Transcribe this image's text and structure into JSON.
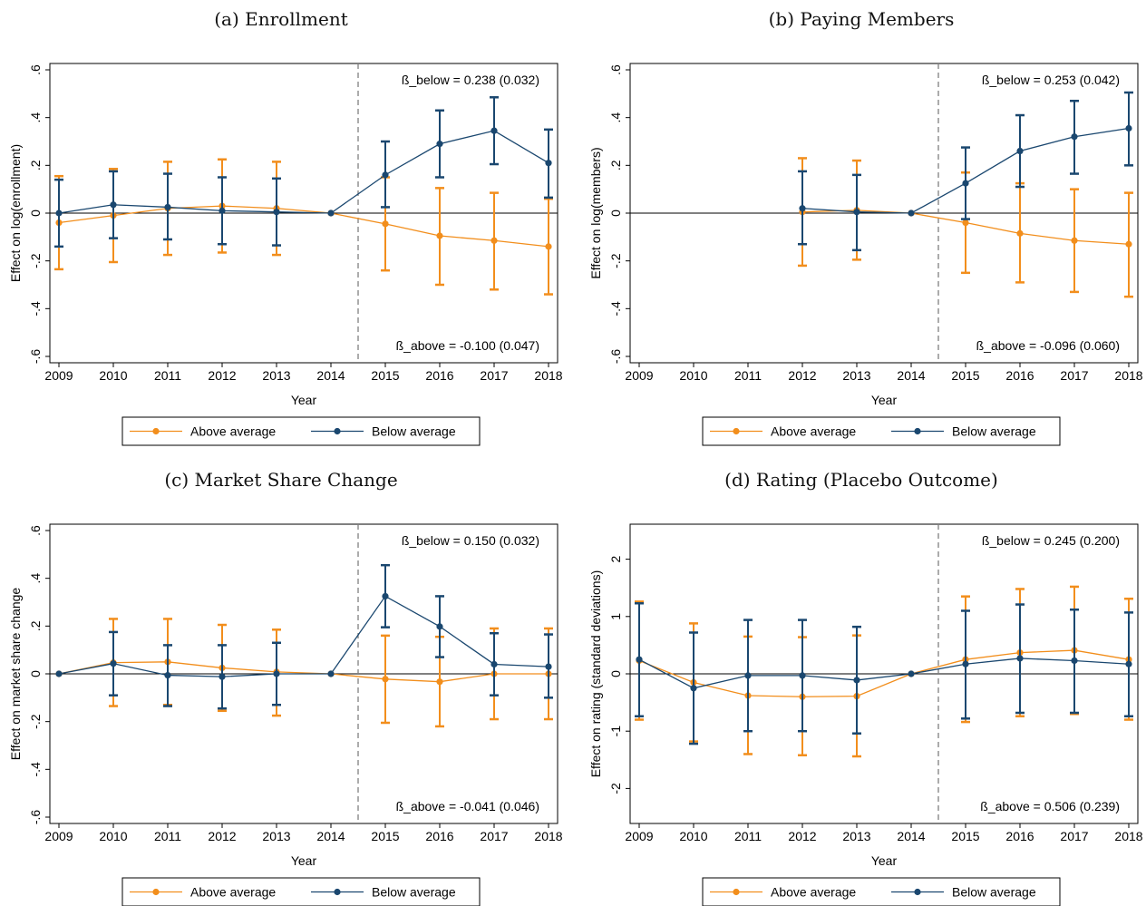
{
  "colors": {
    "above": "#f28e1c",
    "below": "#1a476f",
    "frame": "#000000",
    "zero_line": "#000000",
    "dashed": "#7f7f7f"
  },
  "chart_data": [
    {
      "type": "line",
      "title": "(a) Enrollment",
      "xlabel": "Year",
      "ylabel": "Effect on log(enrollment)",
      "x": [
        2009,
        2010,
        2011,
        2012,
        2013,
        2014,
        2015,
        2016,
        2017,
        2018
      ],
      "ylim": [
        -0.6,
        0.6
      ],
      "yticks": [
        ".6",
        ".4",
        ".2",
        "0",
        "-.2",
        "-.4",
        "-.6"
      ],
      "ytick_values": [
        0.6,
        0.4,
        0.2,
        0,
        -0.2,
        -0.4,
        -0.6
      ],
      "vline_x": 2014.5,
      "legend": [
        "Above average",
        "Below average"
      ],
      "note_below": "ß_below = 0.238 (0.032)",
      "note_above": "ß_above = -0.100 (0.047)",
      "series": [
        {
          "name": "Above average",
          "x": [
            2009,
            2010,
            2011,
            2012,
            2013,
            2014,
            2015,
            2016,
            2017,
            2018
          ],
          "values": [
            -0.04,
            -0.01,
            0.02,
            0.03,
            0.02,
            0,
            -0.045,
            -0.095,
            -0.115,
            -0.14
          ],
          "ci_low": [
            -0.235,
            -0.205,
            -0.175,
            -0.165,
            -0.175,
            0,
            -0.24,
            -0.3,
            -0.32,
            -0.34
          ],
          "ci_high": [
            0.155,
            0.185,
            0.215,
            0.225,
            0.215,
            0,
            0.15,
            0.105,
            0.085,
            0.06
          ]
        },
        {
          "name": "Below average",
          "x": [
            2009,
            2010,
            2011,
            2012,
            2013,
            2014,
            2015,
            2016,
            2017,
            2018
          ],
          "values": [
            0,
            0.035,
            0.025,
            0.01,
            0.005,
            0,
            0.16,
            0.29,
            0.345,
            0.21
          ],
          "ci_low": [
            -0.14,
            -0.105,
            -0.11,
            -0.13,
            -0.135,
            0,
            0.025,
            0.15,
            0.205,
            0.065
          ],
          "ci_high": [
            0.14,
            0.175,
            0.165,
            0.15,
            0.145,
            0,
            0.3,
            0.43,
            0.485,
            0.35
          ]
        }
      ]
    },
    {
      "type": "line",
      "title": "(b) Paying Members",
      "xlabel": "Year",
      "ylabel": "Effect on log(members)",
      "x": [
        2009,
        2010,
        2011,
        2012,
        2013,
        2014,
        2015,
        2016,
        2017,
        2018
      ],
      "ylim": [
        -0.6,
        0.6
      ],
      "yticks": [
        ".6",
        ".4",
        ".2",
        "0",
        "-.2",
        "-.4",
        "-.6"
      ],
      "ytick_values": [
        0.6,
        0.4,
        0.2,
        0,
        -0.2,
        -0.4,
        -0.6
      ],
      "vline_x": 2014.5,
      "legend": [
        "Above average",
        "Below average"
      ],
      "note_below": "ß_below = 0.253 (0.042)",
      "note_above": "ß_above = -0.096 (0.060)",
      "series": [
        {
          "name": "Above average",
          "x": [
            2012,
            2013,
            2014,
            2015,
            2016,
            2017,
            2018
          ],
          "values": [
            0.005,
            0.012,
            0,
            -0.04,
            -0.085,
            -0.115,
            -0.13
          ],
          "ci_low": [
            -0.22,
            -0.195,
            0,
            -0.25,
            -0.29,
            -0.33,
            -0.35
          ],
          "ci_high": [
            0.23,
            0.22,
            0,
            0.17,
            0.125,
            0.1,
            0.085
          ]
        },
        {
          "name": "Below average",
          "x": [
            2012,
            2013,
            2014,
            2015,
            2016,
            2017,
            2018
          ],
          "values": [
            0.02,
            0.005,
            0,
            0.125,
            0.26,
            0.32,
            0.355
          ],
          "ci_low": [
            -0.13,
            -0.155,
            0,
            -0.025,
            0.11,
            0.165,
            0.2
          ],
          "ci_high": [
            0.175,
            0.16,
            0,
            0.275,
            0.41,
            0.47,
            0.505
          ]
        }
      ]
    },
    {
      "type": "line",
      "title": "(c) Market Share Change",
      "xlabel": "Year",
      "ylabel": "Effect on market share change",
      "x": [
        2009,
        2010,
        2011,
        2012,
        2013,
        2014,
        2015,
        2016,
        2017,
        2018
      ],
      "ylim": [
        -0.6,
        0.6
      ],
      "yticks": [
        ".6",
        ".4",
        ".2",
        "0",
        "-.2",
        "-.4",
        "-.6"
      ],
      "ytick_values": [
        0.6,
        0.4,
        0.2,
        0,
        -0.2,
        -0.4,
        -0.6
      ],
      "vline_x": 2014.5,
      "legend": [
        "Above average",
        "Below average"
      ],
      "note_below": "ß_below = 0.150 (0.032)",
      "note_above": "ß_above = -0.041 (0.046)",
      "series": [
        {
          "name": "Above average",
          "x": [
            2009,
            2010,
            2011,
            2012,
            2013,
            2014,
            2015,
            2016,
            2017,
            2018
          ],
          "values": [
            0,
            0.047,
            0.05,
            0.025,
            0.008,
            0,
            -0.022,
            -0.033,
            0,
            0
          ],
          "ci_low": [
            0,
            -0.135,
            -0.13,
            -0.155,
            -0.175,
            0,
            -0.205,
            -0.22,
            -0.19,
            -0.19
          ],
          "ci_high": [
            0,
            0.23,
            0.23,
            0.205,
            0.185,
            0,
            0.16,
            0.155,
            0.19,
            0.19
          ]
        },
        {
          "name": "Below average",
          "x": [
            2009,
            2010,
            2011,
            2012,
            2013,
            2014,
            2015,
            2016,
            2017,
            2018
          ],
          "values": [
            0,
            0.043,
            -0.006,
            -0.012,
            0,
            0,
            0.325,
            0.198,
            0.04,
            0.03
          ],
          "ci_low": [
            0,
            -0.09,
            -0.135,
            -0.145,
            -0.13,
            0,
            0.195,
            0.07,
            -0.09,
            -0.1
          ],
          "ci_high": [
            0,
            0.175,
            0.12,
            0.12,
            0.13,
            0,
            0.455,
            0.325,
            0.17,
            0.165
          ]
        }
      ]
    },
    {
      "type": "line",
      "title": "(d) Rating (Placebo Outcome)",
      "xlabel": "Year",
      "ylabel": "Effect on rating (standard deviations)",
      "x": [
        2009,
        2010,
        2011,
        2012,
        2013,
        2014,
        2015,
        2016,
        2017,
        2018
      ],
      "ylim": [
        -2.5,
        2.5
      ],
      "yticks": [
        "2",
        "1",
        "0",
        "-1",
        "-2"
      ],
      "ytick_values": [
        2,
        1,
        0,
        -1,
        -2
      ],
      "vline_x": 2014.5,
      "legend": [
        "Above average",
        "Below average"
      ],
      "note_below": "ß_below = 0.245 (0.200)",
      "note_above": "ß_above = 0.506 (0.239)",
      "series": [
        {
          "name": "Above average",
          "x": [
            2009,
            2010,
            2011,
            2012,
            2013,
            2014,
            2015,
            2016,
            2017,
            2018
          ],
          "values": [
            0.23,
            -0.15,
            -0.38,
            -0.4,
            -0.39,
            0,
            0.25,
            0.37,
            0.41,
            0.25
          ],
          "ci_low": [
            -0.8,
            -1.18,
            -1.4,
            -1.42,
            -1.44,
            0,
            -0.84,
            -0.74,
            -0.7,
            -0.8
          ],
          "ci_high": [
            1.26,
            0.88,
            0.65,
            0.64,
            0.67,
            0,
            1.35,
            1.48,
            1.52,
            1.31
          ]
        },
        {
          "name": "Below average",
          "x": [
            2009,
            2010,
            2011,
            2012,
            2013,
            2014,
            2015,
            2016,
            2017,
            2018
          ],
          "values": [
            0.25,
            -0.25,
            -0.03,
            -0.03,
            -0.11,
            0,
            0.17,
            0.27,
            0.23,
            0.17
          ],
          "ci_low": [
            -0.74,
            -1.22,
            -1.0,
            -1.0,
            -1.04,
            0,
            -0.78,
            -0.68,
            -0.68,
            -0.74
          ],
          "ci_high": [
            1.23,
            0.72,
            0.94,
            0.94,
            0.82,
            0,
            1.1,
            1.21,
            1.12,
            1.07
          ]
        }
      ]
    }
  ]
}
